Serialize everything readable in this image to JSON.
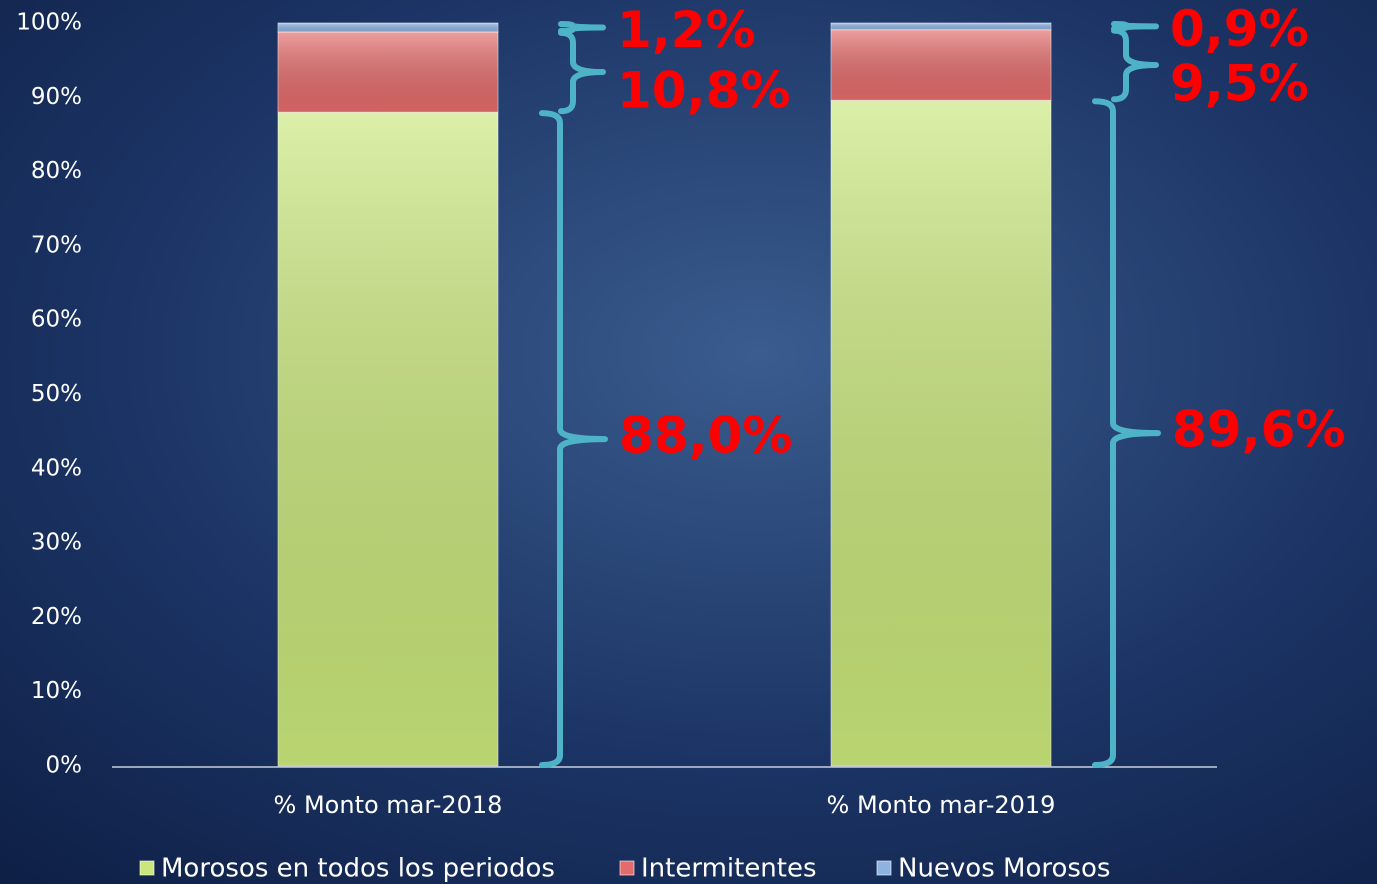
{
  "chart_data": {
    "type": "stacked_bar",
    "categories": [
      "% Monto mar-2018",
      "% Monto mar-2019"
    ],
    "series": [
      {
        "name": "Morosos en todos los periodos",
        "color": "#c9e77a",
        "values": [
          88.0,
          89.6
        ],
        "value_labels": [
          "88,0%",
          "89,6%"
        ]
      },
      {
        "name": "Intermitentes",
        "color": "#e46b6b",
        "values": [
          10.8,
          9.5
        ],
        "value_labels": [
          "10,8%",
          "9,5%"
        ]
      },
      {
        "name": "Nuevos Morosos",
        "color": "#8db3e2",
        "values": [
          1.2,
          0.9
        ],
        "value_labels": [
          "1,2%",
          "0,9%"
        ]
      }
    ],
    "ylim": [
      0,
      100
    ],
    "yticks": [
      {
        "value": 0,
        "label": "0%"
      },
      {
        "value": 10,
        "label": "10%"
      },
      {
        "value": 20,
        "label": "20%"
      },
      {
        "value": 30,
        "label": "30%"
      },
      {
        "value": 40,
        "label": "40%"
      },
      {
        "value": 50,
        "label": "50%"
      },
      {
        "value": 60,
        "label": "60%"
      },
      {
        "value": 70,
        "label": "70%"
      },
      {
        "value": 80,
        "label": "80%"
      },
      {
        "value": 90,
        "label": "90%"
      },
      {
        "value": 100,
        "label": "100%"
      }
    ],
    "legend": "bottom"
  }
}
